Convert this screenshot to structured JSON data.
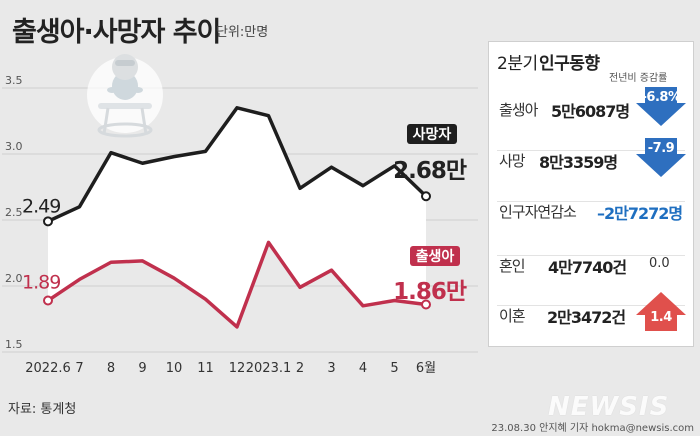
{
  "title": "출생아·사망자 추이",
  "unit_label": "단위:만명",
  "source": "자료: 통계청",
  "credit": "23.08.30 안지혜 기자 hokma@newsis.com",
  "watermark": "NEWSIS",
  "colors": {
    "deaths": "#1e1e1e",
    "births": "#c0304d",
    "up": "#e0504c",
    "down": "#2e6fbf",
    "negative_text": "#1f6fc0"
  },
  "chart_data": {
    "type": "line",
    "categories": [
      "2022.6",
      "7",
      "8",
      "9",
      "10",
      "11",
      "12",
      "2023.1",
      "2",
      "3",
      "4",
      "5",
      "6월"
    ],
    "ylim": [
      1.5,
      3.5
    ],
    "yticks": [
      "1.5",
      "2.0",
      "2.5",
      "3.0",
      "3.5"
    ],
    "grid": true,
    "series": [
      {
        "name": "사망자",
        "values": [
          2.49,
          2.6,
          3.01,
          2.93,
          2.98,
          3.02,
          3.35,
          3.29,
          2.74,
          2.9,
          2.76,
          2.91,
          2.68
        ],
        "start_label": "2.49",
        "end_label": "2.68만",
        "color": "#1e1e1e"
      },
      {
        "name": "출생아",
        "values": [
          1.89,
          2.05,
          2.18,
          2.19,
          2.06,
          1.9,
          1.69,
          2.33,
          1.99,
          2.12,
          1.85,
          1.89,
          1.86
        ],
        "start_label": "1.89",
        "end_label": "1.86만",
        "color": "#c0304d"
      }
    ]
  },
  "panel": {
    "title_prefix": "2분기",
    "title_main": "인구동향",
    "subheader": "전년비 증감률",
    "rows": [
      {
        "label": "출생아",
        "value": "5만6087명",
        "change": "-6.8%",
        "direction": "down"
      },
      {
        "label": "사망",
        "value": "8만3359명",
        "change": "-7.9",
        "direction": "down"
      },
      {
        "label": "인구자연감소",
        "value": "–2만7272명",
        "change": "",
        "direction": "none"
      },
      {
        "label": "혼인",
        "value": "4만7740건",
        "change": "0.0",
        "direction": "none"
      },
      {
        "label": "이혼",
        "value": "2만3472건",
        "change": "1.4",
        "direction": "up"
      }
    ]
  },
  "icons": {
    "illustration": "baby-in-high-chair-icon"
  }
}
